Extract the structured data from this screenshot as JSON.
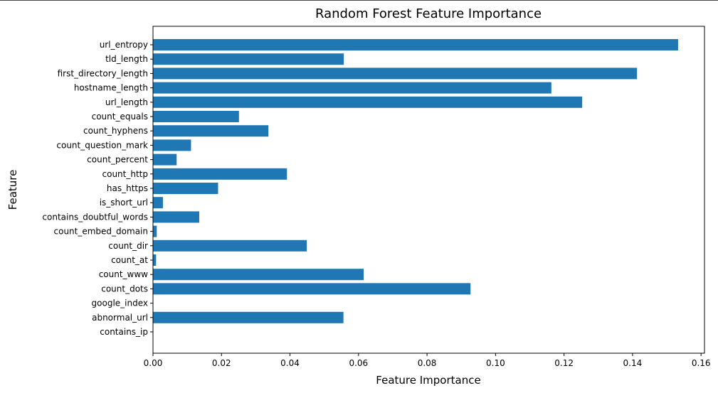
{
  "chart_data": {
    "type": "bar",
    "orientation": "horizontal",
    "title": "Random Forest Feature Importance",
    "xlabel": "Feature Importance",
    "ylabel": "Feature",
    "xlim": [
      0,
      0.161
    ],
    "xticks": [
      0.0,
      0.02,
      0.04,
      0.06,
      0.08,
      0.1,
      0.12,
      0.14,
      0.16
    ],
    "xtick_labels": [
      "0.00",
      "0.02",
      "0.04",
      "0.06",
      "0.08",
      "0.10",
      "0.12",
      "0.14",
      "0.16"
    ],
    "bar_color": "#1f77b4",
    "grid": false,
    "categories": [
      "url_entropy",
      "tld_length",
      "first_directory_length",
      "hostname_length",
      "url_length",
      "count_equals",
      "count_hyphens",
      "count_question_mark",
      "count_percent",
      "count_http",
      "has_https",
      "is_short_url",
      "contains_doubtful_words",
      "count_embed_domain",
      "count_dir",
      "count_at",
      "count_www",
      "count_dots",
      "google_index",
      "abnormal_url",
      "contains_ip"
    ],
    "values": [
      0.1533,
      0.0557,
      0.1413,
      0.1163,
      0.1253,
      0.0251,
      0.0337,
      0.0111,
      0.0069,
      0.0391,
      0.019,
      0.0029,
      0.0135,
      0.0011,
      0.0449,
      0.0009,
      0.0615,
      0.0927,
      0.0,
      0.0556,
      0.0
    ]
  }
}
